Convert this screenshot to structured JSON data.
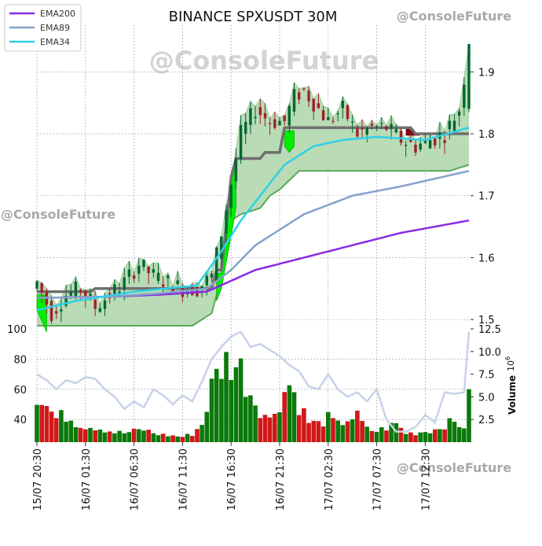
{
  "chart_data": {
    "type": "candlestick",
    "title": "BINANCE SPXUSDT 30M",
    "watermark": "@ConsoleFuture",
    "legend": {
      "placement": "top-left",
      "items": [
        {
          "name": "EMA200",
          "color": "#8a2be2"
        },
        {
          "name": "EMA89",
          "color": "#85a2cc"
        },
        {
          "name": "EMA34",
          "color": "#2ed0e8"
        }
      ]
    },
    "x_tick_labels": [
      "15/07 20:30",
      "16/07 01:30",
      "16/07 06:30",
      "16/07 11:30",
      "16/07 16:30",
      "16/07 21:30",
      "17/07 02:30",
      "17/07 07:30",
      "17/07 12:30"
    ],
    "x_tick_index": [
      0,
      10,
      20,
      30,
      40,
      50,
      60,
      70,
      80
    ],
    "bar_count": 90,
    "price_axis": {
      "ticks": [
        "1.5",
        "1.6",
        "1.7",
        "1.8",
        "1.9"
      ],
      "tick_values": [
        1.5,
        1.6,
        1.7,
        1.8,
        1.9
      ],
      "range": [
        1.49,
        1.95
      ],
      "side": "right"
    },
    "rsi_axis": {
      "ticks": [
        "40",
        "60",
        "80",
        "100"
      ],
      "tick_values": [
        40,
        60,
        80,
        100
      ],
      "range": [
        25,
        100
      ],
      "side": "left"
    },
    "volume_axis": {
      "label": "Volume",
      "exponent": "10",
      "exponent_power": "6",
      "ticks": [
        "2.5",
        "5.0",
        "7.5",
        "10.0",
        "12.5"
      ],
      "tick_values": [
        2.5,
        5.0,
        7.5,
        10.0,
        12.5
      ],
      "range": [
        0,
        12.5
      ],
      "side": "right"
    },
    "price_anchors": [
      [
        0,
        1.56
      ],
      [
        3,
        1.51
      ],
      [
        6,
        1.54
      ],
      [
        9,
        1.55
      ],
      [
        12,
        1.52
      ],
      [
        15,
        1.54
      ],
      [
        18,
        1.56
      ],
      [
        21,
        1.59
      ],
      [
        24,
        1.57
      ],
      [
        27,
        1.56
      ],
      [
        30,
        1.55
      ],
      [
        33,
        1.55
      ],
      [
        36,
        1.57
      ],
      [
        38,
        1.64
      ],
      [
        40,
        1.72
      ],
      [
        42,
        1.8
      ],
      [
        45,
        1.84
      ],
      [
        48,
        1.82
      ],
      [
        51,
        1.82
      ],
      [
        53,
        1.86
      ],
      [
        55,
        1.87
      ],
      [
        57,
        1.85
      ],
      [
        60,
        1.82
      ],
      [
        63,
        1.84
      ],
      [
        66,
        1.8
      ],
      [
        69,
        1.81
      ],
      [
        72,
        1.81
      ],
      [
        75,
        1.79
      ],
      [
        78,
        1.78
      ],
      [
        81,
        1.79
      ],
      [
        84,
        1.8
      ],
      [
        87,
        1.84
      ],
      [
        89,
        1.94
      ]
    ],
    "ema200_anchors": [
      [
        0,
        1.535
      ],
      [
        15,
        1.537
      ],
      [
        25,
        1.54
      ],
      [
        35,
        1.545
      ],
      [
        45,
        1.58
      ],
      [
        55,
        1.6
      ],
      [
        65,
        1.62
      ],
      [
        75,
        1.64
      ],
      [
        89,
        1.66
      ]
    ],
    "ema89_anchors": [
      [
        0,
        1.535
      ],
      [
        15,
        1.537
      ],
      [
        25,
        1.542
      ],
      [
        35,
        1.55
      ],
      [
        40,
        1.58
      ],
      [
        45,
        1.62
      ],
      [
        55,
        1.67
      ],
      [
        65,
        1.7
      ],
      [
        75,
        1.715
      ],
      [
        89,
        1.74
      ]
    ],
    "ema34_anchors": [
      [
        0,
        1.515
      ],
      [
        8,
        1.53
      ],
      [
        20,
        1.545
      ],
      [
        33,
        1.555
      ],
      [
        38,
        1.61
      ],
      [
        42,
        1.66
      ],
      [
        46,
        1.7
      ],
      [
        51,
        1.75
      ],
      [
        57,
        1.78
      ],
      [
        63,
        1.79
      ],
      [
        70,
        1.795
      ],
      [
        80,
        1.79
      ],
      [
        89,
        1.81
      ]
    ],
    "cloud_lower_anchors": [
      [
        0,
        1.49
      ],
      [
        20,
        1.49
      ],
      [
        26,
        1.49
      ],
      [
        32,
        1.49
      ],
      [
        34,
        1.5
      ],
      [
        36,
        1.51
      ],
      [
        38,
        1.57
      ],
      [
        39,
        1.64
      ],
      [
        40,
        1.66
      ],
      [
        42,
        1.67
      ],
      [
        46,
        1.68
      ],
      [
        48,
        1.7
      ],
      [
        50,
        1.71
      ],
      [
        52,
        1.725
      ],
      [
        54,
        1.74
      ],
      [
        56,
        1.74
      ],
      [
        70,
        1.74
      ],
      [
        85,
        1.74
      ],
      [
        89,
        1.75
      ]
    ],
    "kijun_steps": [
      [
        0,
        1.545
      ],
      [
        12,
        1.55
      ],
      [
        34,
        1.55
      ],
      [
        36,
        1.55
      ],
      [
        37,
        1.58
      ],
      [
        39,
        1.65
      ],
      [
        40,
        1.73
      ],
      [
        41,
        1.76
      ],
      [
        47,
        1.77
      ],
      [
        50,
        1.77
      ],
      [
        51,
        1.81
      ],
      [
        53,
        1.81
      ],
      [
        54,
        1.81
      ],
      [
        75,
        1.81
      ],
      [
        78,
        1.8
      ],
      [
        89,
        1.8
      ]
    ],
    "rsi_anchors": [
      [
        0,
        70
      ],
      [
        2,
        66
      ],
      [
        4,
        60
      ],
      [
        6,
        66
      ],
      [
        8,
        64
      ],
      [
        10,
        68
      ],
      [
        12,
        67
      ],
      [
        14,
        60
      ],
      [
        16,
        55
      ],
      [
        18,
        47
      ],
      [
        20,
        52
      ],
      [
        22,
        48
      ],
      [
        24,
        60
      ],
      [
        26,
        56
      ],
      [
        28,
        50
      ],
      [
        30,
        56
      ],
      [
        32,
        52
      ],
      [
        34,
        65
      ],
      [
        36,
        80
      ],
      [
        38,
        88
      ],
      [
        40,
        95
      ],
      [
        42,
        98
      ],
      [
        44,
        88
      ],
      [
        46,
        90
      ],
      [
        48,
        86
      ],
      [
        50,
        82
      ],
      [
        52,
        76
      ],
      [
        54,
        72
      ],
      [
        56,
        62
      ],
      [
        58,
        60
      ],
      [
        60,
        70
      ],
      [
        62,
        60
      ],
      [
        64,
        55
      ],
      [
        66,
        58
      ],
      [
        68,
        52
      ],
      [
        70,
        60
      ],
      [
        72,
        40
      ],
      [
        74,
        32
      ],
      [
        76,
        32
      ],
      [
        78,
        35
      ],
      [
        80,
        43
      ],
      [
        82,
        38
      ],
      [
        84,
        58
      ],
      [
        86,
        57
      ],
      [
        88,
        58
      ],
      [
        89,
        98
      ]
    ],
    "volume_anchors": [
      [
        0,
        5.6
      ],
      [
        2,
        4.0
      ],
      [
        4,
        2.6
      ],
      [
        6,
        3.0
      ],
      [
        8,
        2.2
      ],
      [
        10,
        1.8
      ],
      [
        12,
        1.7
      ],
      [
        14,
        1.4
      ],
      [
        16,
        1.1
      ],
      [
        18,
        1.0
      ],
      [
        20,
        1.2
      ],
      [
        22,
        1.4
      ],
      [
        24,
        1.0
      ],
      [
        26,
        0.8
      ],
      [
        28,
        0.7
      ],
      [
        30,
        0.6
      ],
      [
        32,
        0.9
      ],
      [
        34,
        2.0
      ],
      [
        36,
        6.0
      ],
      [
        38,
        8.5
      ],
      [
        40,
        9.0
      ],
      [
        42,
        8.0
      ],
      [
        44,
        5.5
      ],
      [
        46,
        3.8
      ],
      [
        48,
        2.4
      ],
      [
        50,
        4.6
      ],
      [
        52,
        6.5
      ],
      [
        54,
        4.2
      ],
      [
        56,
        2.2
      ],
      [
        58,
        2.0
      ],
      [
        60,
        2.6
      ],
      [
        62,
        1.9
      ],
      [
        64,
        2.6
      ],
      [
        66,
        2.8
      ],
      [
        68,
        1.4
      ],
      [
        70,
        1.2
      ],
      [
        72,
        1.6
      ],
      [
        74,
        2.0
      ],
      [
        76,
        1.0
      ],
      [
        78,
        1.0
      ],
      [
        80,
        1.2
      ],
      [
        82,
        1.4
      ],
      [
        84,
        2.0
      ],
      [
        86,
        2.1
      ],
      [
        88,
        1.8
      ],
      [
        89,
        4.6
      ]
    ],
    "colors": {
      "up": "#006633",
      "down": "#a0202a",
      "cloud_fill": "#b5d9b1",
      "cloud_edge": "#5aa85a",
      "kijun": "#707070",
      "rsi_line": "#c6d2e8",
      "vol_up": "#0a7a0a",
      "vol_down": "#d01818",
      "band": "#00ee00",
      "accent_red": "#7a0010"
    }
  }
}
